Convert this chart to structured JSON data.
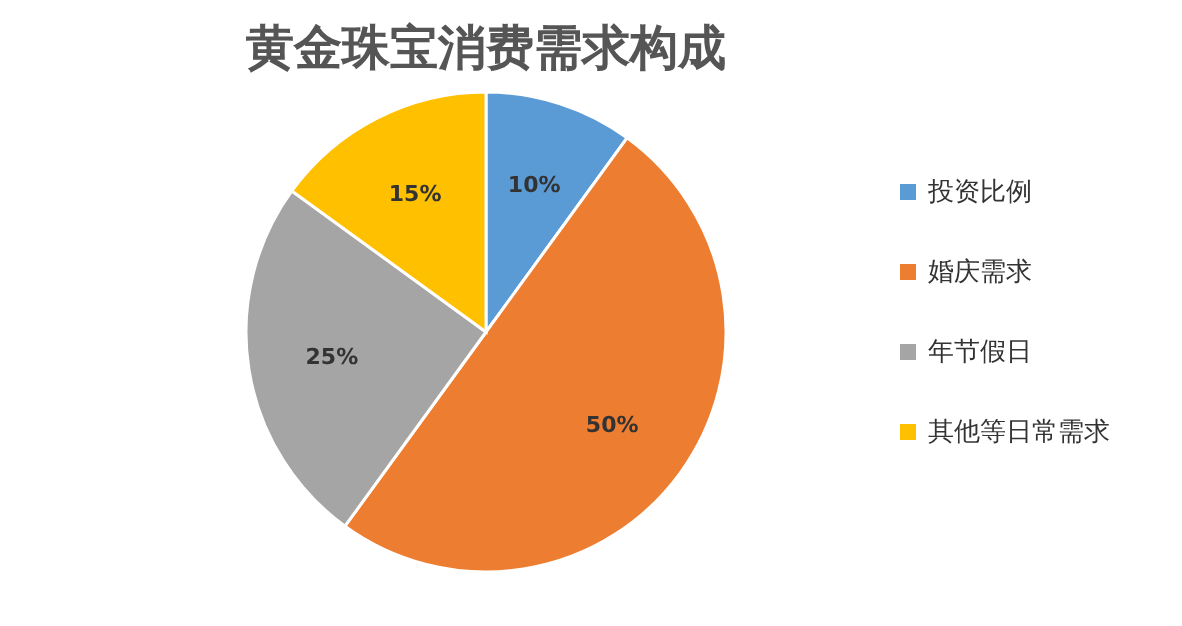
{
  "chart_data": {
    "type": "pie",
    "title": "黄金珠宝消费需求构成",
    "categories": [
      "投资比例",
      "婚庆需求",
      "年节假日",
      "其他等日常需求"
    ],
    "values": [
      10,
      50,
      25,
      15
    ],
    "value_labels": [
      "10%",
      "50%",
      "25%",
      "15%"
    ],
    "colors": [
      "#5b9bd5",
      "#ed7d31",
      "#a5a5a5",
      "#ffc000"
    ],
    "legend": "right"
  }
}
